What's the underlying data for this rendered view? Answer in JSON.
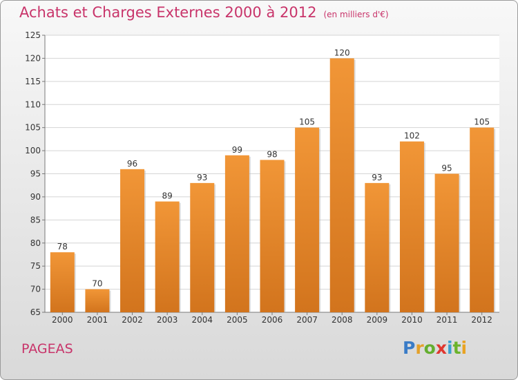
{
  "title": "Achats et Charges Externes 2000 à 2012",
  "unit": "(en milliers d'€)",
  "commune": "PAGEAS",
  "logo": {
    "letters": [
      "P",
      "r",
      "o",
      "x",
      "i",
      "t",
      "i"
    ],
    "colors": [
      "#3a7cc7",
      "#e4a12a",
      "#64ae2f",
      "#e0372f",
      "#3aa1cf",
      "#6bb32c",
      "#e9a322"
    ]
  },
  "colors": {
    "bar": "#f19637",
    "bar_dark": "#d2741d",
    "title": "#c8346a"
  },
  "chart_data": {
    "type": "bar",
    "categories": [
      "2000",
      "2001",
      "2002",
      "2003",
      "2004",
      "2005",
      "2006",
      "2007",
      "2008",
      "2009",
      "2010",
      "2011",
      "2012"
    ],
    "values": [
      78,
      70,
      96,
      89,
      93,
      99,
      98,
      105,
      120,
      93,
      102,
      95,
      105
    ],
    "title": "Achats et Charges Externes 2000 à 2012",
    "ylim": [
      65,
      125
    ],
    "yticks": [
      65,
      70,
      75,
      80,
      85,
      90,
      95,
      100,
      105,
      110,
      115,
      120,
      125
    ],
    "grid": true,
    "data_labels": true
  }
}
